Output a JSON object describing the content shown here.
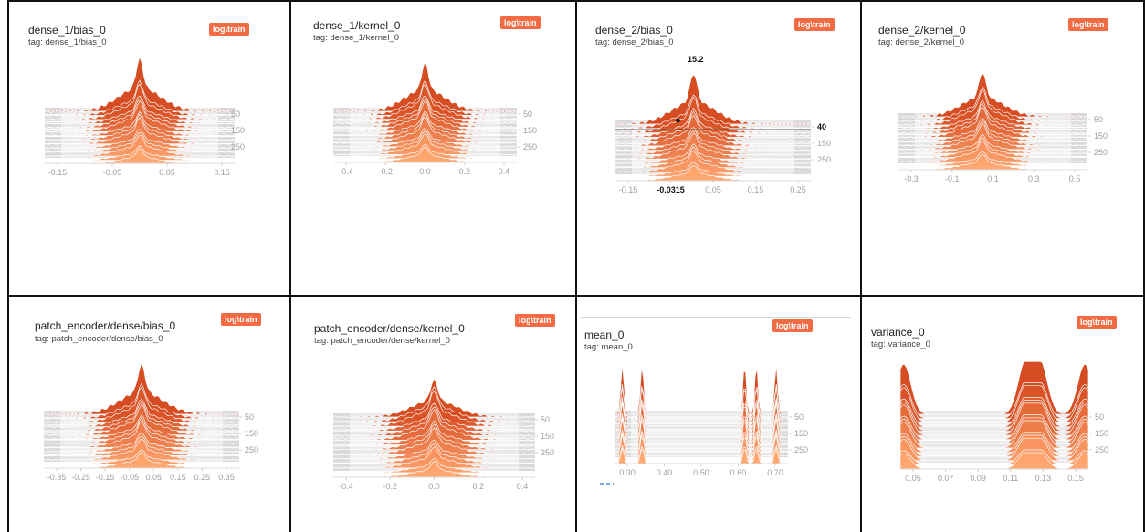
{
  "badge": "log\\train",
  "colors": {
    "dark": "#d5461b",
    "light": "#ffa56e",
    "stroke": "#ffffff",
    "axis": "#9e9e9e",
    "border": "#111111",
    "badge": "#f26b43"
  },
  "panels": [
    {
      "title": "dense_1/bias_0",
      "tag": "tag: dense_1/bias_0",
      "chart_data": {
        "type": "histogram",
        "x_ticks": [
          "-0.15",
          "-0.05",
          "0.05",
          "0.15"
        ],
        "y_ticks": [
          "50",
          "150",
          "250"
        ],
        "xlim": [
          -0.2,
          0.2
        ],
        "peak": 0.0
      }
    },
    {
      "title": "dense_1/kernel_0",
      "tag": "tag: dense_1/kernel_0",
      "chart_data": {
        "type": "histogram",
        "x_ticks": [
          "-0.4",
          "-0.2",
          "0.0",
          "0.2",
          "0.4"
        ],
        "y_ticks": [
          "50",
          "150",
          "250"
        ],
        "xlim": [
          -0.5,
          0.5
        ],
        "peak": 0.0
      }
    },
    {
      "title": "dense_2/bias_0",
      "tag": "tag: dense_2/bias_0",
      "chart_data": {
        "type": "histogram",
        "x_ticks": [
          "-0.15",
          "-0.0315",
          "0.05",
          "0.15",
          "0.25"
        ],
        "y_ticks": [
          "40",
          "150",
          "250"
        ],
        "xlim": [
          -0.2,
          0.3
        ],
        "peak": 0.0,
        "hover": {
          "x": "-0.0315",
          "peak_value": "15.2",
          "step": "40"
        }
      }
    },
    {
      "title": "dense_2/kernel_0",
      "tag": "tag: dense_2/kernel_0",
      "chart_data": {
        "type": "histogram",
        "x_ticks": [
          "-0.3",
          "-0.1",
          "0.1",
          "0.3",
          "0.5"
        ],
        "y_ticks": [
          "50",
          "150",
          "250"
        ],
        "xlim": [
          -0.4,
          0.5
        ],
        "peak": 0.0
      }
    },
    {
      "title": "patch_encoder/dense/bias_0",
      "tag": "tag: patch_encoder/dense/bias_0",
      "chart_data": {
        "type": "histogram",
        "x_ticks": [
          "-0.35",
          "-0.25",
          "-0.15",
          "-0.05",
          "0.05",
          "0.15",
          "0.25",
          "0.35"
        ],
        "y_ticks": [
          "50",
          "150",
          "250"
        ],
        "xlim": [
          -0.4,
          0.4
        ],
        "peak": 0.0
      }
    },
    {
      "title": "patch_encoder/dense/kernel_0",
      "tag": "tag: patch_encoder/dense/kernel_0",
      "chart_data": {
        "type": "histogram",
        "x_ticks": [
          "-0.4",
          "-0.2",
          "0.0",
          "0.2",
          "0.4"
        ],
        "y_ticks": [
          "50",
          "150",
          "250"
        ],
        "xlim": [
          -0.5,
          0.5
        ],
        "peak": 0.0
      }
    },
    {
      "title": "mean_0",
      "tag": "tag: mean_0",
      "chart_data": {
        "type": "histogram",
        "x_ticks": [
          "0.30",
          "0.40",
          "0.50",
          "0.60",
          "0.70"
        ],
        "y_ticks": [
          "50",
          "150",
          "250"
        ],
        "xlim": [
          0.28,
          0.72
        ],
        "peaks": [
          0.3,
          0.35,
          0.61,
          0.64,
          0.69
        ]
      }
    },
    {
      "title": "variance_0",
      "tag": "tag: variance_0",
      "chart_data": {
        "type": "histogram",
        "x_ticks": [
          "0.05",
          "0.07",
          "0.09",
          "0.11",
          "0.13",
          "0.15"
        ],
        "y_ticks": [
          "50",
          "150",
          "250"
        ],
        "xlim": [
          0.04,
          0.15
        ],
        "peaks": [
          0.042,
          0.113,
          0.122,
          0.148
        ]
      }
    }
  ]
}
